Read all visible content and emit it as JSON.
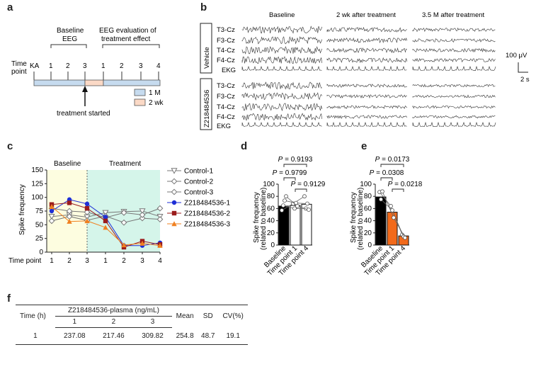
{
  "panels": {
    "a": "a",
    "b": "b",
    "c": "c",
    "d": "d",
    "e": "e",
    "f": "f"
  },
  "panel_a": {
    "baseline_eeg": [
      "Baseline",
      "EEG"
    ],
    "eeg_eval": [
      "EEG evaluation of",
      "treatment effect"
    ],
    "time_point_label": [
      "Time",
      "point"
    ],
    "ka": "KA",
    "baseline_ticks": [
      "1",
      "2",
      "3"
    ],
    "treatment_ticks": [
      "1",
      "2",
      "3",
      "4"
    ],
    "legend": [
      {
        "label": "1 M",
        "color": "#c6dbef"
      },
      {
        "label": "2 wk",
        "color": "#fbd9c6"
      }
    ],
    "arrow_label": "treatment started"
  },
  "panel_b": {
    "columns": [
      "Baseline",
      "2 wk after treatment",
      "3.5 M after treatment"
    ],
    "groups": [
      {
        "name": "Vehicle",
        "channels": [
          "T3-Cz",
          "F3-Cz",
          "T4-Cz",
          "F4-Cz",
          "EKG"
        ]
      },
      {
        "name": "Z218484536",
        "channels": [
          "T3-Cz",
          "F3-Cz",
          "T4-Cz",
          "F4-Cz",
          "EKG"
        ]
      }
    ],
    "scale_y": "100 μV",
    "scale_x": "2 s"
  },
  "chart_data": [
    {
      "type": "line",
      "panel": "c",
      "ylabel": "Spike frequency",
      "xlabel": "Time point",
      "ylim": [
        0,
        150
      ],
      "yticks": [
        0,
        25,
        50,
        75,
        100,
        125,
        150
      ],
      "categories": [
        "1",
        "2",
        "3",
        "1",
        "2",
        "3",
        "4"
      ],
      "phase_labels": [
        "Baseline",
        "Treatment"
      ],
      "phase_colors": {
        "baseline": "#fdfde0",
        "treatment": "#d5f5ea"
      },
      "series": [
        {
          "name": "Control-1",
          "marker": "triangle-down-open",
          "color": "#777777",
          "values": [
            65,
            68,
            64,
            72,
            74,
            75,
            65
          ]
        },
        {
          "name": "Control-2",
          "marker": "diamond-open",
          "color": "#777777",
          "values": [
            57,
            65,
            58,
            66,
            54,
            62,
            60
          ]
        },
        {
          "name": "Control-3",
          "marker": "diamond-open",
          "color": "#777777",
          "values": [
            80,
            75,
            73,
            63,
            72,
            68,
            80
          ]
        },
        {
          "name": "Z218484536-1",
          "marker": "circle",
          "color": "#1f2fd6",
          "values": [
            75,
            96,
            88,
            64,
            12,
            12,
            17
          ]
        },
        {
          "name": "Z218484536-2",
          "marker": "square",
          "color": "#9b1c1c",
          "values": [
            87,
            90,
            80,
            57,
            9,
            20,
            14
          ]
        },
        {
          "name": "Z218484536-3",
          "marker": "triangle",
          "color": "#f08020",
          "values": [
            83,
            56,
            57,
            45,
            13,
            16,
            12
          ]
        }
      ]
    },
    {
      "type": "bar",
      "panel": "d",
      "ylabel": "Spike frequency\n(related to baseline)",
      "ylim": [
        0,
        100
      ],
      "yticks": [
        0,
        20,
        40,
        60,
        80,
        100
      ],
      "categories": [
        "Baseline",
        "Time point 1",
        "Time point 4"
      ],
      "values": [
        64,
        65,
        67
      ],
      "bar_colors": [
        "#000000",
        "#ffffff",
        "#ffffff"
      ],
      "points": [
        [
          57,
          65,
          73,
          80
        ],
        [
          68,
          60,
          69,
          64
        ],
        [
          80,
          60,
          68,
          58
        ]
      ],
      "comparisons": [
        {
          "label": "P = 0.9193",
          "from": 0,
          "to": 2
        },
        {
          "label": "P = 0.9799",
          "from": 0,
          "to": 1
        },
        {
          "label": "P = 0.9129",
          "from": 1,
          "to": 2
        }
      ]
    },
    {
      "type": "bar",
      "panel": "e",
      "ylabel": "Spike frequency\n(related to baseline)",
      "ylim": [
        0,
        100
      ],
      "yticks": [
        0,
        20,
        40,
        60,
        80,
        100
      ],
      "categories": [
        "Baseline",
        "Time point 1",
        "Time point 4"
      ],
      "values": [
        79,
        54,
        15
      ],
      "bar_colors": [
        "#000000",
        "#f26a1b",
        "#f26a1b"
      ],
      "points": [
        [
          87,
          75,
          88
        ],
        [
          64,
          57,
          45
        ],
        [
          17,
          14,
          12
        ]
      ],
      "comparisons": [
        {
          "label": "P = 0.0173",
          "from": 0,
          "to": 2
        },
        {
          "label": "P = 0.0308",
          "from": 0,
          "to": 1
        },
        {
          "label": "P = 0.0218",
          "from": 1,
          "to": 2
        }
      ]
    }
  ],
  "table_f": {
    "group_header": "Z218484536-plasma (ng/mL)",
    "time_header": "Time (h)",
    "sub_headers": [
      "1",
      "2",
      "3"
    ],
    "stat_headers": [
      "Mean",
      "SD",
      "CV(%)"
    ],
    "rows": [
      {
        "time": "1",
        "values": [
          "237.08",
          "217.46",
          "309.82",
          "254.8",
          "48.7",
          "19.1"
        ]
      }
    ]
  }
}
